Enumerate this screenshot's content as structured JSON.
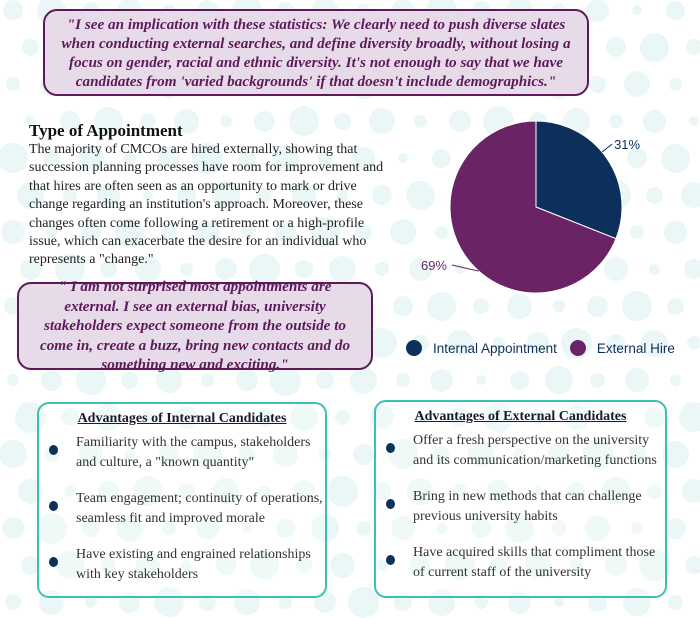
{
  "quote_top": "\"I see an implication with these statistics: We clearly need to push diverse slates when conducting external searches, and define diversity broadly, without losing a focus on gender, racial and ethnic diversity. It's not enough to say that we have candidates from 'varied backgrounds' if that doesn't include demographics.\"",
  "section": {
    "title": "Type of Appointment",
    "body": "The majority of CMCOs are hired externally, showing that succession planning processes have room for improvement and that hires are often seen as an opportunity to mark or drive change regarding an institution's approach. Moreover, these changes often come following a retirement or a high-profile issue, which can exacerbate the desire for an individual who represents a \"change.\""
  },
  "quote_middle": "\" I am not surprised most appointments are external. I see an external bias, university stakeholders expect someone from the outside to come in, create a buzz, bring new contacts and do something new and exciting.\"",
  "chart_data": {
    "type": "pie",
    "categories": [
      "Internal Appointment",
      "External Hire"
    ],
    "values": [
      31,
      69
    ],
    "data_labels": [
      "31%",
      "69%"
    ],
    "colors": [
      "#0d2f5c",
      "#6a2466"
    ],
    "legend_position": "bottom"
  },
  "internal": {
    "title": "Advantages of Internal Candidates",
    "items": [
      "Familiarity with the campus, stakeholders and culture, a \"known quantity\"",
      "Team engagement; continuity of operations, seamless fit and improved morale",
      "Have existing and engrained relationships with key stakeholders"
    ]
  },
  "external": {
    "title": "Advantages of External Candidates",
    "items": [
      "Offer a fresh perspective on the university and its communication/marketing functions",
      "Bring in new methods that can challenge previous university habits",
      "Have acquired skills that compliment those of current staff of the university"
    ]
  }
}
